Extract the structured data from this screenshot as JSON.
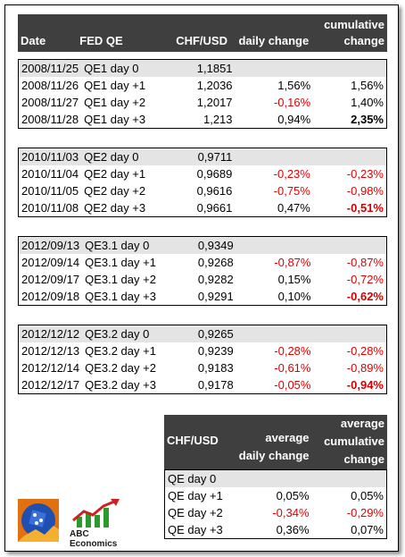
{
  "header": {
    "date": "Date",
    "fed_qe": "FED QE",
    "chf_usd": "CHF/USD",
    "daily_change": "daily change",
    "cumulative_line1": "cumulative",
    "cumulative_line2": "change"
  },
  "groups": [
    {
      "rows": [
        {
          "date": "2008/11/25",
          "qe": "QE1 day 0",
          "rate": "1,1851",
          "daily": "",
          "cum": ""
        },
        {
          "date": "2008/11/26",
          "qe": "QE1 day +1",
          "rate": "1,2036",
          "daily": "1,56%",
          "cum": "1,56%"
        },
        {
          "date": "2008/11/27",
          "qe": "QE1 day +2",
          "rate": "1,2017",
          "daily": "-0,16%",
          "cum": "1,40%"
        },
        {
          "date": "2008/11/28",
          "qe": "QE1 day +3",
          "rate": "1,213",
          "daily": "0,94%",
          "cum": "2,35%"
        }
      ]
    },
    {
      "rows": [
        {
          "date": "2010/11/03",
          "qe": "QE2 day 0",
          "rate": "0,9711",
          "daily": "",
          "cum": ""
        },
        {
          "date": "2010/11/04",
          "qe": "QE2 day +1",
          "rate": "0,9689",
          "daily": "-0,23%",
          "cum": "-0,23%"
        },
        {
          "date": "2010/11/05",
          "qe": "QE2 day +2",
          "rate": "0,9616",
          "daily": "-0,75%",
          "cum": "-0,98%"
        },
        {
          "date": "2010/11/08",
          "qe": "QE2 day +3",
          "rate": "0,9661",
          "daily": "0,47%",
          "cum": "-0,51%"
        }
      ]
    },
    {
      "rows": [
        {
          "date": "2012/09/13",
          "qe": "QE3.1 day 0",
          "rate": "0,9349",
          "daily": "",
          "cum": ""
        },
        {
          "date": "2012/09/14",
          "qe": "QE3.1 day +1",
          "rate": "0,9268",
          "daily": "-0,87%",
          "cum": "-0,87%"
        },
        {
          "date": "2012/09/17",
          "qe": "QE3.1 day +2",
          "rate": "0,9282",
          "daily": "0,15%",
          "cum": "-0,72%"
        },
        {
          "date": "2012/09/18",
          "qe": "QE3.1 day +3",
          "rate": "0,9291",
          "daily": "0,10%",
          "cum": "-0,62%"
        }
      ]
    },
    {
      "rows": [
        {
          "date": "2012/12/12",
          "qe": "QE3.2 day 0",
          "rate": "0,9265",
          "daily": "",
          "cum": ""
        },
        {
          "date": "2012/12/13",
          "qe": "QE3.2 day +1",
          "rate": "0,9239",
          "daily": "-0,28%",
          "cum": "-0,28%"
        },
        {
          "date": "2012/12/14",
          "qe": "QE3.2 day +2",
          "rate": "0,9183",
          "daily": "-0,61%",
          "cum": "-0,89%"
        },
        {
          "date": "2012/12/17",
          "qe": "QE3.2 day +3",
          "rate": "0,9178",
          "daily": "-0,05%",
          "cum": "-0,94%"
        }
      ]
    }
  ],
  "summary": {
    "header": {
      "label": "CHF/USD",
      "avg_daily_1": "average",
      "avg_daily_2": "daily change",
      "avg_cum_1": "average",
      "avg_cum_2": "cumulative",
      "avg_cum_3": "change"
    },
    "rows": [
      {
        "label": "QE day 0",
        "daily": "",
        "cum": ""
      },
      {
        "label": "QE day +1",
        "daily": "0,05%",
        "cum": "0,05%"
      },
      {
        "label": "QE day +2",
        "daily": "-0,34%",
        "cum": "-0,29%"
      },
      {
        "label": "QE day +3",
        "daily": "0,36%",
        "cum": "0,07%"
      }
    ]
  },
  "logo": {
    "text": "ABC Economics",
    "colors": {
      "blue": "#1f4fb0",
      "orange": "#e07010",
      "green": "#2a9a2a",
      "red": "#d02020"
    }
  },
  "colors": {
    "header_bg": "#3f3f3f",
    "day0_bg": "#e4e4e4",
    "negative": "#e00000"
  }
}
